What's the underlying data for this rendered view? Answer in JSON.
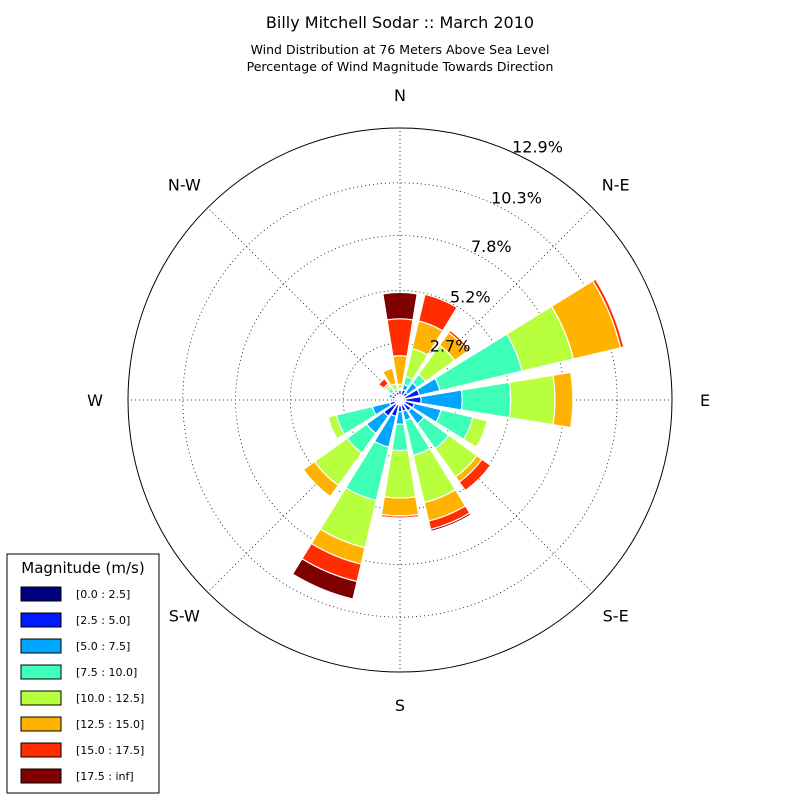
{
  "chart_data": {
    "type": "windrose",
    "title": "Billy Mitchell Sodar :: March 2010",
    "subtitle_lines": [
      "Wind Distribution at 76 Meters Above Sea Level",
      "Percentage of Wind Magnitude Towards Direction"
    ],
    "direction_labels": [
      "N",
      "N-E",
      "E",
      "S-E",
      "S",
      "S-W",
      "W",
      "N-W"
    ],
    "radial_ticks": [
      2.7,
      5.2,
      7.8,
      10.3,
      12.9
    ],
    "radial_tick_labels": [
      "2.7%",
      "5.2%",
      "7.8%",
      "10.3%",
      "12.9%"
    ],
    "rmax": 12.9,
    "grid": true,
    "legend": {
      "title": "Magnitude (m/s)",
      "placement": "lower-left",
      "entries": [
        "[0.0 : 2.5]",
        "[2.5 : 5.0]",
        "[5.0 : 7.5]",
        "[7.5 : 10.0]",
        "[10.0 : 12.5]",
        "[12.5 : 15.0]",
        "[15.0 : 17.5]",
        "[17.5 : inf]"
      ]
    },
    "bin_colors": [
      "#00007f",
      "#0019ff",
      "#00a5ff",
      "#3effb8",
      "#b8ff3e",
      "#ffb200",
      "#ff2d00",
      "#7f0000"
    ],
    "units": "percent",
    "directions_deg": [
      0,
      22.5,
      45,
      67.5,
      90,
      112.5,
      135,
      157.5,
      180,
      202.5,
      225,
      247.5,
      270,
      292.5,
      315,
      337.5
    ],
    "bins_by_direction": [
      [
        0.25,
        0.2,
        0.05,
        0.05,
        0.2,
        1.35,
        1.75,
        1.25
      ],
      [
        0.25,
        0.25,
        0.25,
        0.4,
        1.35,
        1.35,
        1.3,
        0
      ],
      [
        0.25,
        0.2,
        0.55,
        0.5,
        1.7,
        0.75,
        0.12,
        0
      ],
      [
        0.25,
        0.7,
        1.0,
        4.0,
        2.5,
        2.3,
        0.15,
        0
      ],
      [
        0.25,
        0.75,
        1.95,
        2.3,
        2.1,
        0.85,
        0,
        0
      ],
      [
        0.25,
        0.45,
        1.3,
        1.55,
        0.7,
        0,
        0,
        0
      ],
      [
        0.25,
        0.4,
        0.75,
        1.45,
        1.65,
        0.3,
        0.5,
        0
      ],
      [
        0.25,
        0.3,
        0.45,
        1.7,
        2.3,
        0.9,
        0.4,
        0.1
      ],
      [
        0.25,
        0.3,
        0.6,
        1.25,
        2.25,
        0.85,
        0.1,
        0
      ],
      [
        0.25,
        0.55,
        1.5,
        2.6,
        2.3,
        0.8,
        0.85,
        0.85
      ],
      [
        0.25,
        0.7,
        1.0,
        1.15,
        1.9,
        0.65,
        0,
        0
      ],
      [
        0.25,
        0.25,
        0.85,
        1.75,
        0.4,
        0,
        0,
        0
      ],
      [
        0.25,
        0.1,
        0.1,
        0,
        0,
        0,
        0,
        0
      ],
      [
        0.25,
        0.15,
        0.15,
        0,
        0,
        0,
        0,
        0
      ],
      [
        0.25,
        0.15,
        0.1,
        0.2,
        0.15,
        0.1,
        0.3,
        0
      ],
      [
        0.25,
        0.15,
        0.1,
        0,
        0.3,
        0.75,
        0,
        0
      ]
    ]
  }
}
